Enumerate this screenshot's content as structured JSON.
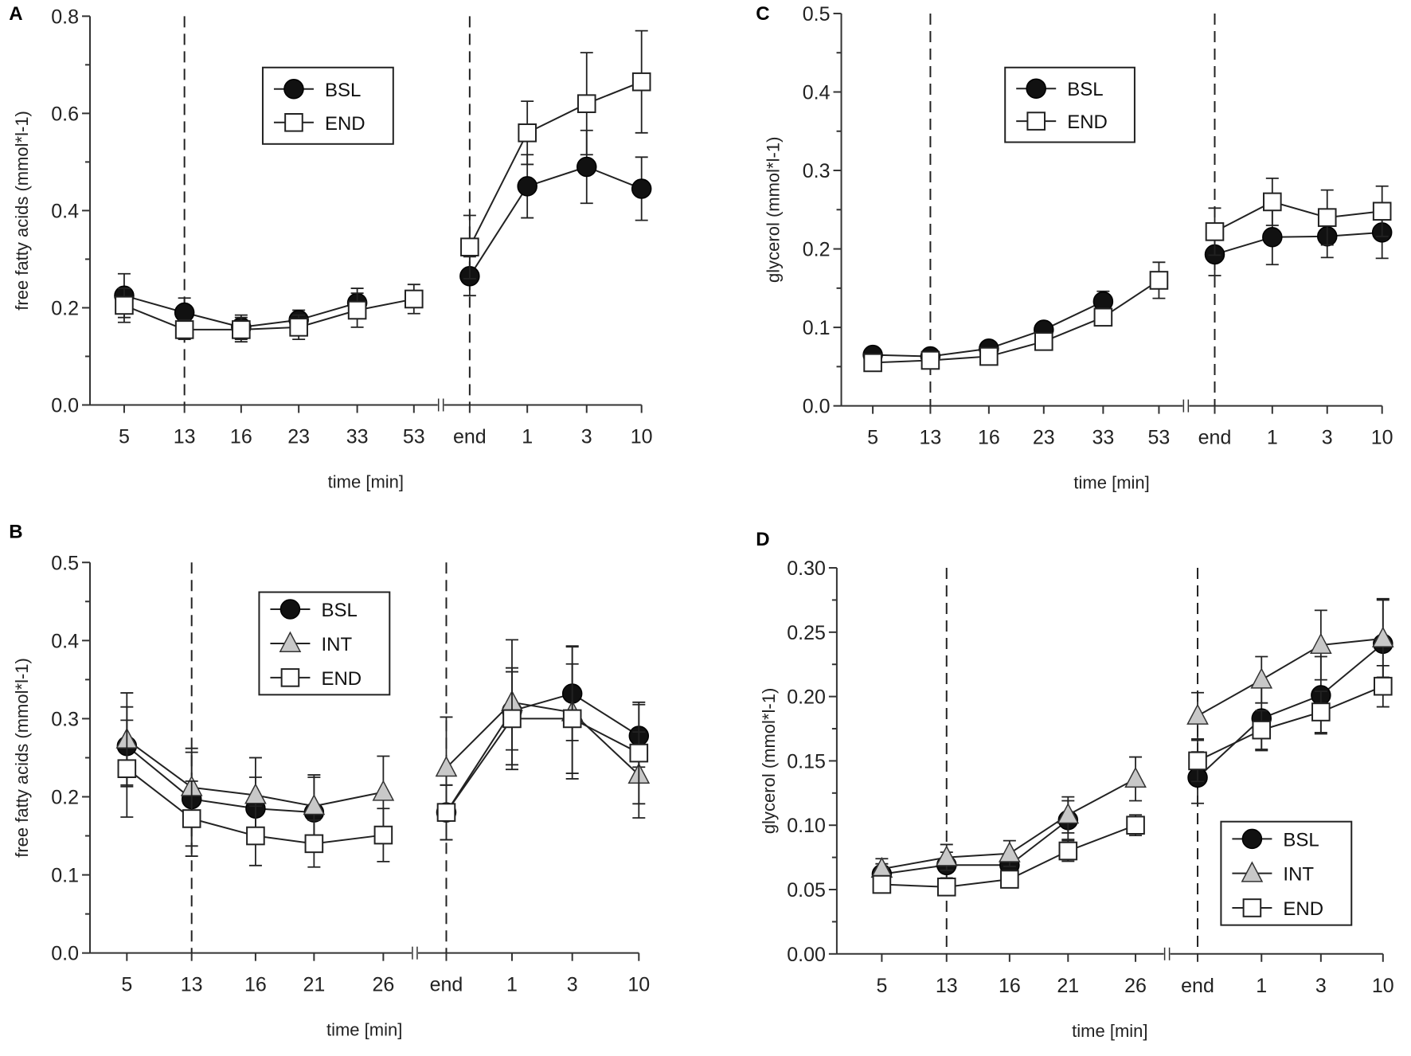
{
  "chart_data": [
    {
      "panel": "A",
      "type": "line",
      "xlabel": "time [min]",
      "ylabel": "free fatty acids (mmol*l-1)",
      "ylim": [
        0,
        0.8
      ],
      "yticks": [
        "0.0",
        "0.2",
        "0.4",
        "0.6",
        "0.8"
      ],
      "yticks_values": [
        0,
        0.2,
        0.4,
        0.6,
        0.8
      ],
      "categories": [
        "5",
        "13",
        "16",
        "23",
        "33",
        "53",
        "end",
        "1",
        "3",
        "10"
      ],
      "axis_break_after": "53",
      "dashed_lines_at": [
        "13",
        "end"
      ],
      "legend_placement": "top-center",
      "series": [
        {
          "name": "BSL",
          "marker": "circle",
          "values": [
            0.225,
            0.19,
            0.16,
            0.175,
            0.21,
            null,
            0.265,
            0.45,
            0.49,
            0.445
          ],
          "errors": [
            0.045,
            0.03,
            0.025,
            0.02,
            0.03,
            null,
            0.04,
            0.065,
            0.075,
            0.065
          ]
        },
        {
          "name": "END",
          "marker": "square",
          "values": [
            0.205,
            0.155,
            0.155,
            0.16,
            0.195,
            0.218,
            0.325,
            0.56,
            0.62,
            0.665
          ],
          "errors": [
            0.035,
            0.02,
            0.025,
            0.025,
            0.035,
            0.03,
            0.065,
            0.065,
            0.105,
            0.105
          ]
        }
      ]
    },
    {
      "panel": "C",
      "type": "line",
      "xlabel": "time [min]",
      "ylabel": "glycerol (mmol*l-1)",
      "ylim": [
        0,
        0.5
      ],
      "yticks": [
        "0.0",
        "0.1",
        "0.2",
        "0.3",
        "0.4",
        "0.5"
      ],
      "yticks_values": [
        0,
        0.1,
        0.2,
        0.3,
        0.4,
        0.5
      ],
      "categories": [
        "5",
        "13",
        "16",
        "23",
        "33",
        "53",
        "end",
        "1",
        "3",
        "10"
      ],
      "axis_break_after": "53",
      "dashed_lines_at": [
        "13",
        "end"
      ],
      "legend_placement": "top-center",
      "series": [
        {
          "name": "BSL",
          "marker": "circle",
          "values": [
            0.065,
            0.063,
            0.073,
            0.097,
            0.133,
            null,
            0.193,
            0.215,
            0.216,
            0.221
          ],
          "errors": [
            0.005,
            0.005,
            0.005,
            0.008,
            0.013,
            null,
            0.027,
            0.035,
            0.027,
            0.033
          ]
        },
        {
          "name": "END",
          "marker": "square",
          "values": [
            0.055,
            0.058,
            0.063,
            0.082,
            0.113,
            0.16,
            0.222,
            0.26,
            0.24,
            0.248
          ],
          "errors": [
            0.005,
            0.005,
            0.005,
            0.006,
            0.01,
            0.023,
            0.03,
            0.03,
            0.035,
            0.032
          ]
        }
      ]
    },
    {
      "panel": "B",
      "type": "line",
      "xlabel": "time [min]",
      "ylabel": "free fatty acids (mmol*l-1)",
      "ylim": [
        0,
        0.5
      ],
      "yticks": [
        "0.0",
        "0.1",
        "0.2",
        "0.3",
        "0.4",
        "0.5"
      ],
      "yticks_values": [
        0,
        0.1,
        0.2,
        0.3,
        0.4,
        0.5
      ],
      "categories": [
        "5",
        "13",
        "16",
        "21",
        "26",
        "end",
        "1",
        "3",
        "10"
      ],
      "axis_break_after": "26",
      "dashed_lines_at": [
        "13",
        "end"
      ],
      "legend_placement": "top-center",
      "series": [
        {
          "name": "BSL",
          "marker": "circle",
          "values": [
            0.265,
            0.197,
            0.185,
            0.18,
            null,
            0.18,
            0.31,
            0.332,
            0.278
          ],
          "errors": [
            0.05,
            0.06,
            0.04,
            0.045,
            null,
            0.035,
            0.05,
            0.06,
            0.04
          ]
        },
        {
          "name": "INT",
          "marker": "triangle",
          "values": [
            0.273,
            0.212,
            0.202,
            0.188,
            0.206,
            0.237,
            0.321,
            0.308,
            0.228
          ],
          "errors": [
            0.06,
            0.05,
            0.048,
            0.04,
            0.046,
            0.065,
            0.08,
            0.085,
            0.055
          ]
        },
        {
          "name": "END",
          "marker": "square",
          "values": [
            0.236,
            0.172,
            0.15,
            0.14,
            0.151,
            0.18,
            0.3,
            0.3,
            0.256
          ],
          "errors": [
            0.062,
            0.048,
            0.038,
            0.03,
            0.034,
            0.035,
            0.065,
            0.07,
            0.065
          ]
        }
      ]
    },
    {
      "panel": "D",
      "type": "line",
      "xlabel": "time [min]",
      "ylabel": "glycerol (mmol*l-1)",
      "ylim": [
        0,
        0.3
      ],
      "yticks": [
        "0.00",
        "0.05",
        "0.10",
        "0.15",
        "0.20",
        "0.25",
        "0.30"
      ],
      "yticks_values": [
        0,
        0.05,
        0.1,
        0.15,
        0.2,
        0.25,
        0.3
      ],
      "categories": [
        "5",
        "13",
        "16",
        "21",
        "26",
        "end",
        "1",
        "3",
        "10"
      ],
      "axis_break_after": "26",
      "dashed_lines_at": [
        "13",
        "end"
      ],
      "legend_placement": "bottom-right",
      "series": [
        {
          "name": "BSL",
          "marker": "circle",
          "values": [
            0.062,
            0.069,
            0.069,
            0.104,
            null,
            0.137,
            0.183,
            0.201,
            0.241
          ],
          "errors": [
            0.008,
            0.01,
            0.008,
            0.015,
            null,
            0.02,
            0.025,
            0.03,
            0.035
          ]
        },
        {
          "name": "INT",
          "marker": "triangle",
          "values": [
            0.066,
            0.075,
            0.078,
            0.108,
            0.136,
            0.185,
            0.213,
            0.24,
            0.245
          ],
          "errors": [
            0.008,
            0.01,
            0.01,
            0.014,
            0.017,
            0.018,
            0.018,
            0.027,
            0.03
          ]
        },
        {
          "name": "END",
          "marker": "square",
          "values": [
            0.054,
            0.052,
            0.058,
            0.08,
            0.1,
            0.15,
            0.174,
            0.188,
            0.208
          ],
          "errors": [
            0.005,
            0.006,
            0.006,
            0.008,
            0.008,
            0.016,
            0.015,
            0.016,
            0.016
          ]
        }
      ]
    }
  ],
  "colors": {
    "BSL": "#111111",
    "INT": "#c8c8c8",
    "END": "#ffffff",
    "line": "#222222"
  }
}
